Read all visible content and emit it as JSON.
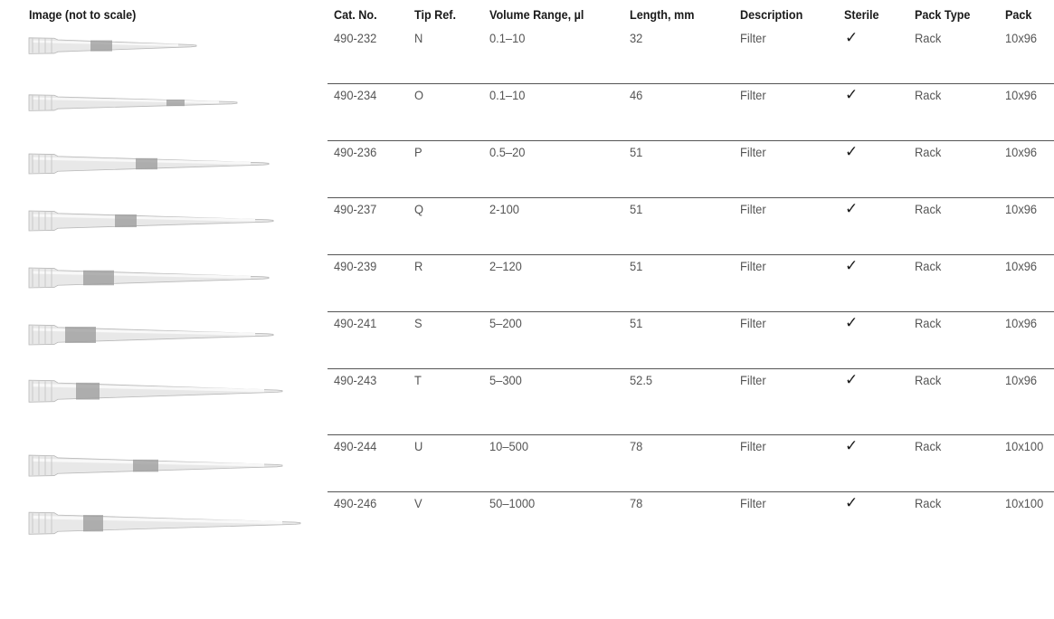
{
  "table": {
    "headers": {
      "image": "Image (not to scale)",
      "cat_no": "Cat. No.",
      "tip_ref": "Tip Ref.",
      "volume": "Volume Range, µl",
      "length": "Length, mm",
      "description": "Description",
      "sterile": "Sterile",
      "pack_type": "Pack Type",
      "pack": "Pack"
    },
    "rows": [
      {
        "cat_no": "490-232",
        "tip_ref": "N",
        "volume": "0.1–10",
        "length": "32",
        "description": "Filter",
        "sterile": "✓",
        "pack_type": "Rack",
        "pack": "10x96",
        "image_icon": "pipette-tip-icon"
      },
      {
        "cat_no": "490-234",
        "tip_ref": "O",
        "volume": "0.1–10",
        "length": "46",
        "description": "Filter",
        "sterile": "✓",
        "pack_type": "Rack",
        "pack": "10x96",
        "image_icon": "pipette-tip-icon"
      },
      {
        "cat_no": "490-236",
        "tip_ref": "P",
        "volume": "0.5–20",
        "length": "51",
        "description": "Filter",
        "sterile": "✓",
        "pack_type": "Rack",
        "pack": "10x96",
        "image_icon": "pipette-tip-icon"
      },
      {
        "cat_no": "490-237",
        "tip_ref": "Q",
        "volume": "2-100",
        "length": "51",
        "description": "Filter",
        "sterile": "✓",
        "pack_type": "Rack",
        "pack": "10x96",
        "image_icon": "pipette-tip-icon"
      },
      {
        "cat_no": "490-239",
        "tip_ref": "R",
        "volume": "2–120",
        "length": "51",
        "description": "Filter",
        "sterile": "✓",
        "pack_type": "Rack",
        "pack": "10x96",
        "image_icon": "pipette-tip-icon"
      },
      {
        "cat_no": "490-241",
        "tip_ref": "S",
        "volume": "5–200",
        "length": "51",
        "description": "Filter",
        "sterile": "✓",
        "pack_type": "Rack",
        "pack": "10x96",
        "image_icon": "pipette-tip-icon"
      },
      {
        "cat_no": "490-243",
        "tip_ref": "T",
        "volume": "5–300",
        "length": "52.5",
        "description": "Filter",
        "sterile": "✓",
        "pack_type": "Rack",
        "pack": "10x96",
        "image_icon": "pipette-tip-icon"
      },
      {
        "cat_no": "490-244",
        "tip_ref": "U",
        "volume": "10–500",
        "length": "78",
        "description": "Filter",
        "sterile": "✓",
        "pack_type": "Rack",
        "pack": "10x100",
        "image_icon": "pipette-tip-icon"
      },
      {
        "cat_no": "490-246",
        "tip_ref": "V",
        "volume": "50–1000",
        "length": "78",
        "description": "Filter",
        "sterile": "✓",
        "pack_type": "Rack",
        "pack": "10x100",
        "image_icon": "pipette-tip-icon"
      }
    ]
  }
}
